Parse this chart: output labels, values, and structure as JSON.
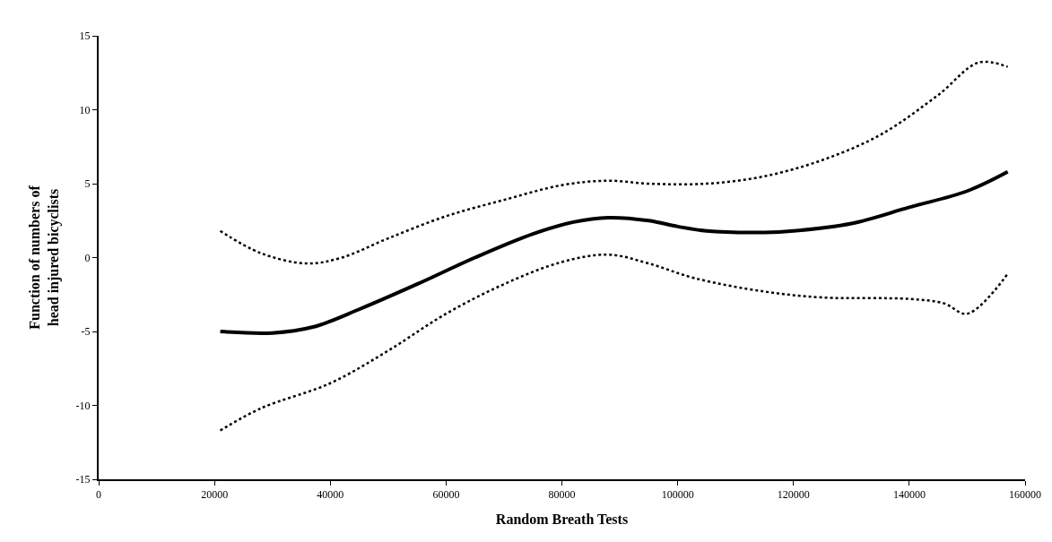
{
  "chart_data": {
    "type": "line",
    "xlabel": "Random Breath Tests",
    "ylabel": "Function of numbers of\nhead injured bicyclists",
    "xlim": [
      0,
      160000
    ],
    "xticks": [
      0,
      20000,
      40000,
      60000,
      80000,
      100000,
      120000,
      140000,
      160000
    ],
    "ylim": [
      -15,
      15
    ],
    "yticks": [
      -15,
      -10,
      -5,
      0,
      5,
      10,
      15
    ],
    "series": [
      {
        "color": "#000000",
        "line_style": "solid",
        "x": [
          21000,
          30000,
          37000,
          45000,
          55000,
          65000,
          75000,
          82000,
          88000,
          95000,
          100000,
          105000,
          115000,
          120000,
          130000,
          140000,
          150000,
          157000
        ],
        "values": [
          -5,
          -5.1,
          -4.7,
          -3.5,
          -1.8,
          0,
          1.6,
          2.4,
          2.7,
          2.5,
          2.1,
          1.8,
          1.7,
          1.8,
          2.3,
          3.4,
          4.5,
          5.8
        ]
      },
      {
        "color": "#000000",
        "line_style": "dotted",
        "x": [
          21000,
          28000,
          36000,
          42000,
          50000,
          60000,
          70000,
          80000,
          88000,
          95000,
          105000,
          115000,
          125000,
          135000,
          145000,
          152000,
          157000
        ],
        "values": [
          1.8,
          0.3,
          -0.4,
          0,
          1.3,
          2.8,
          3.9,
          4.9,
          5.2,
          5.0,
          5.0,
          5.5,
          6.6,
          8.3,
          11,
          13.2,
          12.9
        ]
      },
      {
        "color": "#000000",
        "line_style": "dotted",
        "x": [
          21000,
          28000,
          40000,
          50000,
          60000,
          70000,
          80000,
          88000,
          95000,
          103000,
          115000,
          125000,
          140000,
          146000,
          150000,
          157000
        ],
        "values": [
          -11.7,
          -10.2,
          -8.5,
          -6.3,
          -3.8,
          -1.8,
          -0.3,
          0.2,
          -0.4,
          -1.4,
          -2.3,
          -2.7,
          -2.8,
          -3.1,
          -3.8,
          -1.1
        ]
      }
    ]
  }
}
